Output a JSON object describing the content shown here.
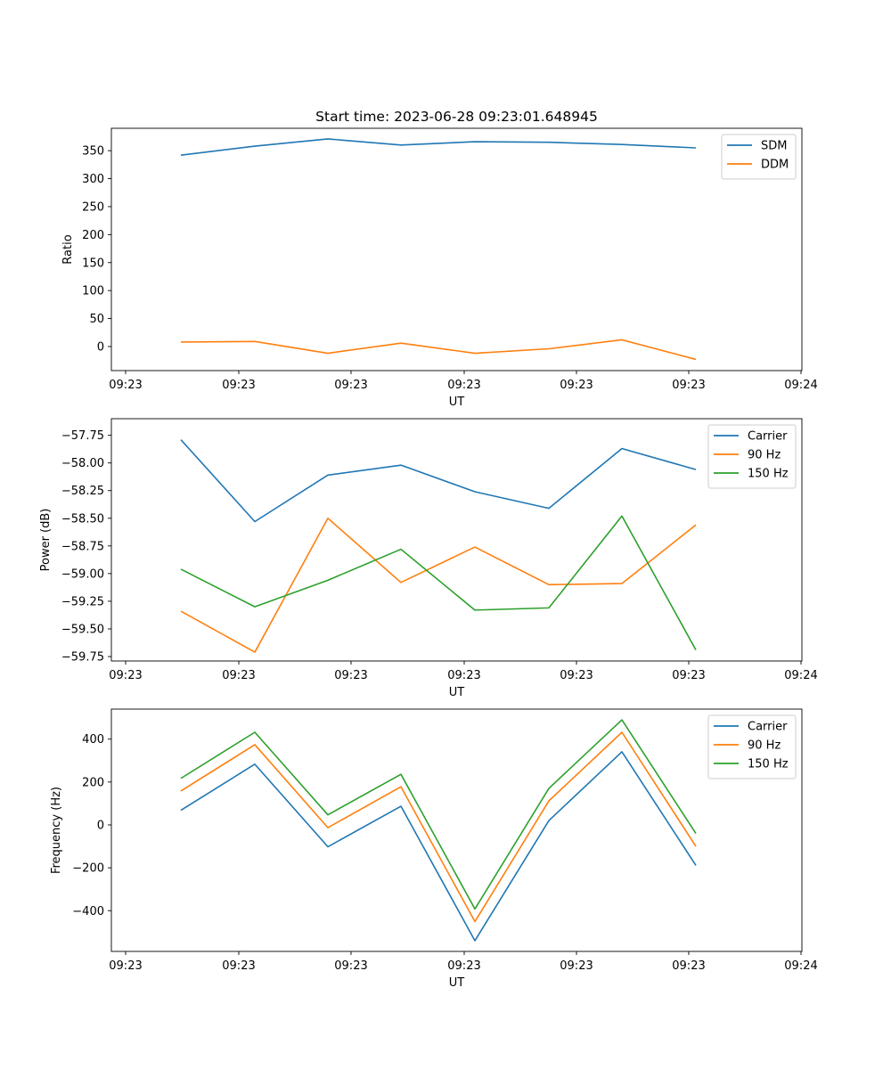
{
  "chart_data": [
    {
      "type": "line",
      "title": "Start time: 2023-06-28 09:23:01.648945",
      "xlabel": "UT",
      "ylabel": "Ratio",
      "x_tick_labels": [
        "09:23",
        "09:23",
        "09:23",
        "09:23",
        "09:23",
        "09:23",
        "09:24"
      ],
      "y_ticks": [
        0,
        50,
        100,
        150,
        200,
        250,
        300,
        350
      ],
      "ylim": [
        -43,
        390
      ],
      "grid": false,
      "legend": "top-right",
      "series": [
        {
          "name": "SDM",
          "color": "#1f77b4",
          "values": [
            342,
            358,
            371,
            360,
            366,
            365,
            361,
            355
          ]
        },
        {
          "name": "DDM",
          "color": "#ff7f0e",
          "values": [
            8,
            9,
            -12,
            6,
            -12,
            -4,
            12,
            -23
          ]
        }
      ]
    },
    {
      "type": "line",
      "title": "",
      "xlabel": "UT",
      "ylabel": "Power (dB)",
      "x_tick_labels": [
        "09:23",
        "09:23",
        "09:23",
        "09:23",
        "09:23",
        "09:23",
        "09:24"
      ],
      "y_ticks": [
        -59.75,
        -59.5,
        -59.25,
        -59.0,
        -58.75,
        -58.5,
        -58.25,
        -58.0,
        -57.75
      ],
      "y_tick_labels": [
        "−59.75",
        "−59.50",
        "−59.25",
        "−59.00",
        "−58.75",
        "−58.50",
        "−58.25",
        "−58.00",
        "−57.75"
      ],
      "ylim": [
        -59.79,
        -57.6
      ],
      "grid": false,
      "legend": "top-right",
      "series": [
        {
          "name": "Carrier",
          "color": "#1f77b4",
          "values": [
            -57.79,
            -58.53,
            -58.11,
            -58.02,
            -58.26,
            -58.41,
            -57.87,
            -58.06
          ]
        },
        {
          "name": "90 Hz",
          "color": "#ff7f0e",
          "values": [
            -59.34,
            -59.71,
            -58.5,
            -59.08,
            -58.76,
            -59.1,
            -59.09,
            -58.56
          ]
        },
        {
          "name": "150 Hz",
          "color": "#2ca02c",
          "values": [
            -58.96,
            -59.3,
            -59.06,
            -58.78,
            -59.33,
            -59.31,
            -58.48,
            -59.69
          ]
        }
      ]
    },
    {
      "type": "line",
      "title": "",
      "xlabel": "UT",
      "ylabel": "Frequency (Hz)",
      "x_tick_labels": [
        "09:23",
        "09:23",
        "09:23",
        "09:23",
        "09:23",
        "09:23",
        "09:24"
      ],
      "y_ticks": [
        -400,
        -200,
        0,
        200,
        400
      ],
      "y_tick_labels": [
        "−400",
        "−200",
        "0",
        "200",
        "400"
      ],
      "ylim": [
        -590,
        540
      ],
      "grid": false,
      "legend": "top-right",
      "series": [
        {
          "name": "Carrier",
          "color": "#1f77b4",
          "values": [
            68,
            283,
            -102,
            87,
            -540,
            20,
            341,
            -189
          ]
        },
        {
          "name": "90 Hz",
          "color": "#ff7f0e",
          "values": [
            158,
            374,
            -13,
            178,
            -451,
            112,
            432,
            -100
          ]
        },
        {
          "name": "150 Hz",
          "color": "#2ca02c",
          "values": [
            217,
            432,
            47,
            236,
            -392,
            170,
            490,
            -40
          ]
        }
      ]
    }
  ]
}
